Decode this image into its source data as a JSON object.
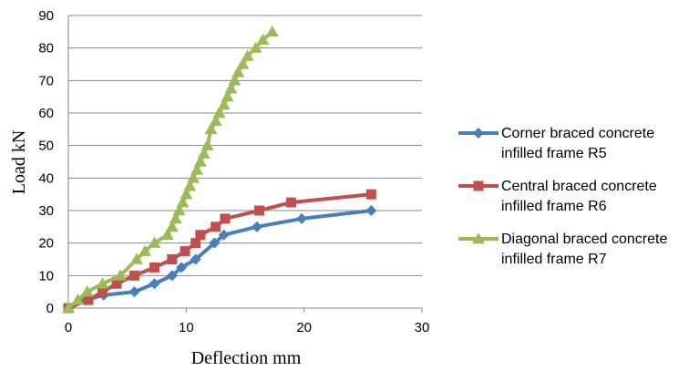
{
  "chart_data": {
    "type": "line",
    "xlabel": "Deflection mm",
    "ylabel": "Load kN",
    "xlim": [
      0,
      30
    ],
    "ylim": [
      0,
      90
    ],
    "xticks": [
      "0",
      "10",
      "20",
      "30"
    ],
    "yticks": [
      "0",
      "10",
      "20",
      "30",
      "40",
      "50",
      "60",
      "70",
      "80",
      "90"
    ],
    "grid": "horizontal",
    "legend": "right",
    "series": [
      {
        "name_line1": "Corner braced concrete",
        "name_line2": "infilled frame R5",
        "color": "#4a7ebb",
        "marker": "diamond",
        "x": [
          0,
          1.5,
          3,
          5.6,
          7.3,
          8.8,
          9.6,
          10.8,
          12.4,
          13.2,
          16,
          19.8,
          25.7
        ],
        "y": [
          0,
          2.5,
          4,
          5,
          7.5,
          10,
          12.5,
          15,
          20,
          22.5,
          25,
          27.5,
          30
        ]
      },
      {
        "name_line1": "Central braced concrete",
        "name_line2": "infilled frame R6",
        "color": "#c0504d",
        "marker": "square",
        "x": [
          0,
          1.7,
          2.9,
          4.1,
          5.6,
          7.3,
          8.8,
          9.9,
          10.8,
          11.2,
          12.5,
          13.3,
          16.2,
          18.9,
          25.7
        ],
        "y": [
          0,
          2.5,
          5,
          7.5,
          10,
          12.5,
          15,
          17.5,
          20,
          22.5,
          25,
          27.5,
          30,
          32.5,
          35
        ]
      },
      {
        "name_line1": "Diagonal braced concrete",
        "name_line2": "infilled frame R7",
        "color": "#9bbb59",
        "marker": "triangle",
        "x": [
          0,
          0.8,
          1.6,
          2.9,
          4.4,
          5.8,
          6.5,
          7.3,
          8.4,
          8.8,
          9.1,
          9.4,
          9.7,
          10,
          10.3,
          10.6,
          10.9,
          11.2,
          11.5,
          11.8,
          12.1,
          12.5,
          12.8,
          13.2,
          13.5,
          13.8,
          14.1,
          14.4,
          14.8,
          15.2,
          15.9,
          16.5,
          17.3
        ],
        "y": [
          0,
          2.5,
          5,
          7.5,
          10,
          15,
          17.5,
          20,
          22.5,
          25,
          27.5,
          30,
          32.5,
          35,
          37.5,
          40,
          42.5,
          45,
          47.5,
          50,
          55,
          57.5,
          60,
          62.5,
          65,
          67.5,
          70,
          72.5,
          75,
          77.5,
          80,
          82.5,
          85
        ]
      }
    ]
  }
}
